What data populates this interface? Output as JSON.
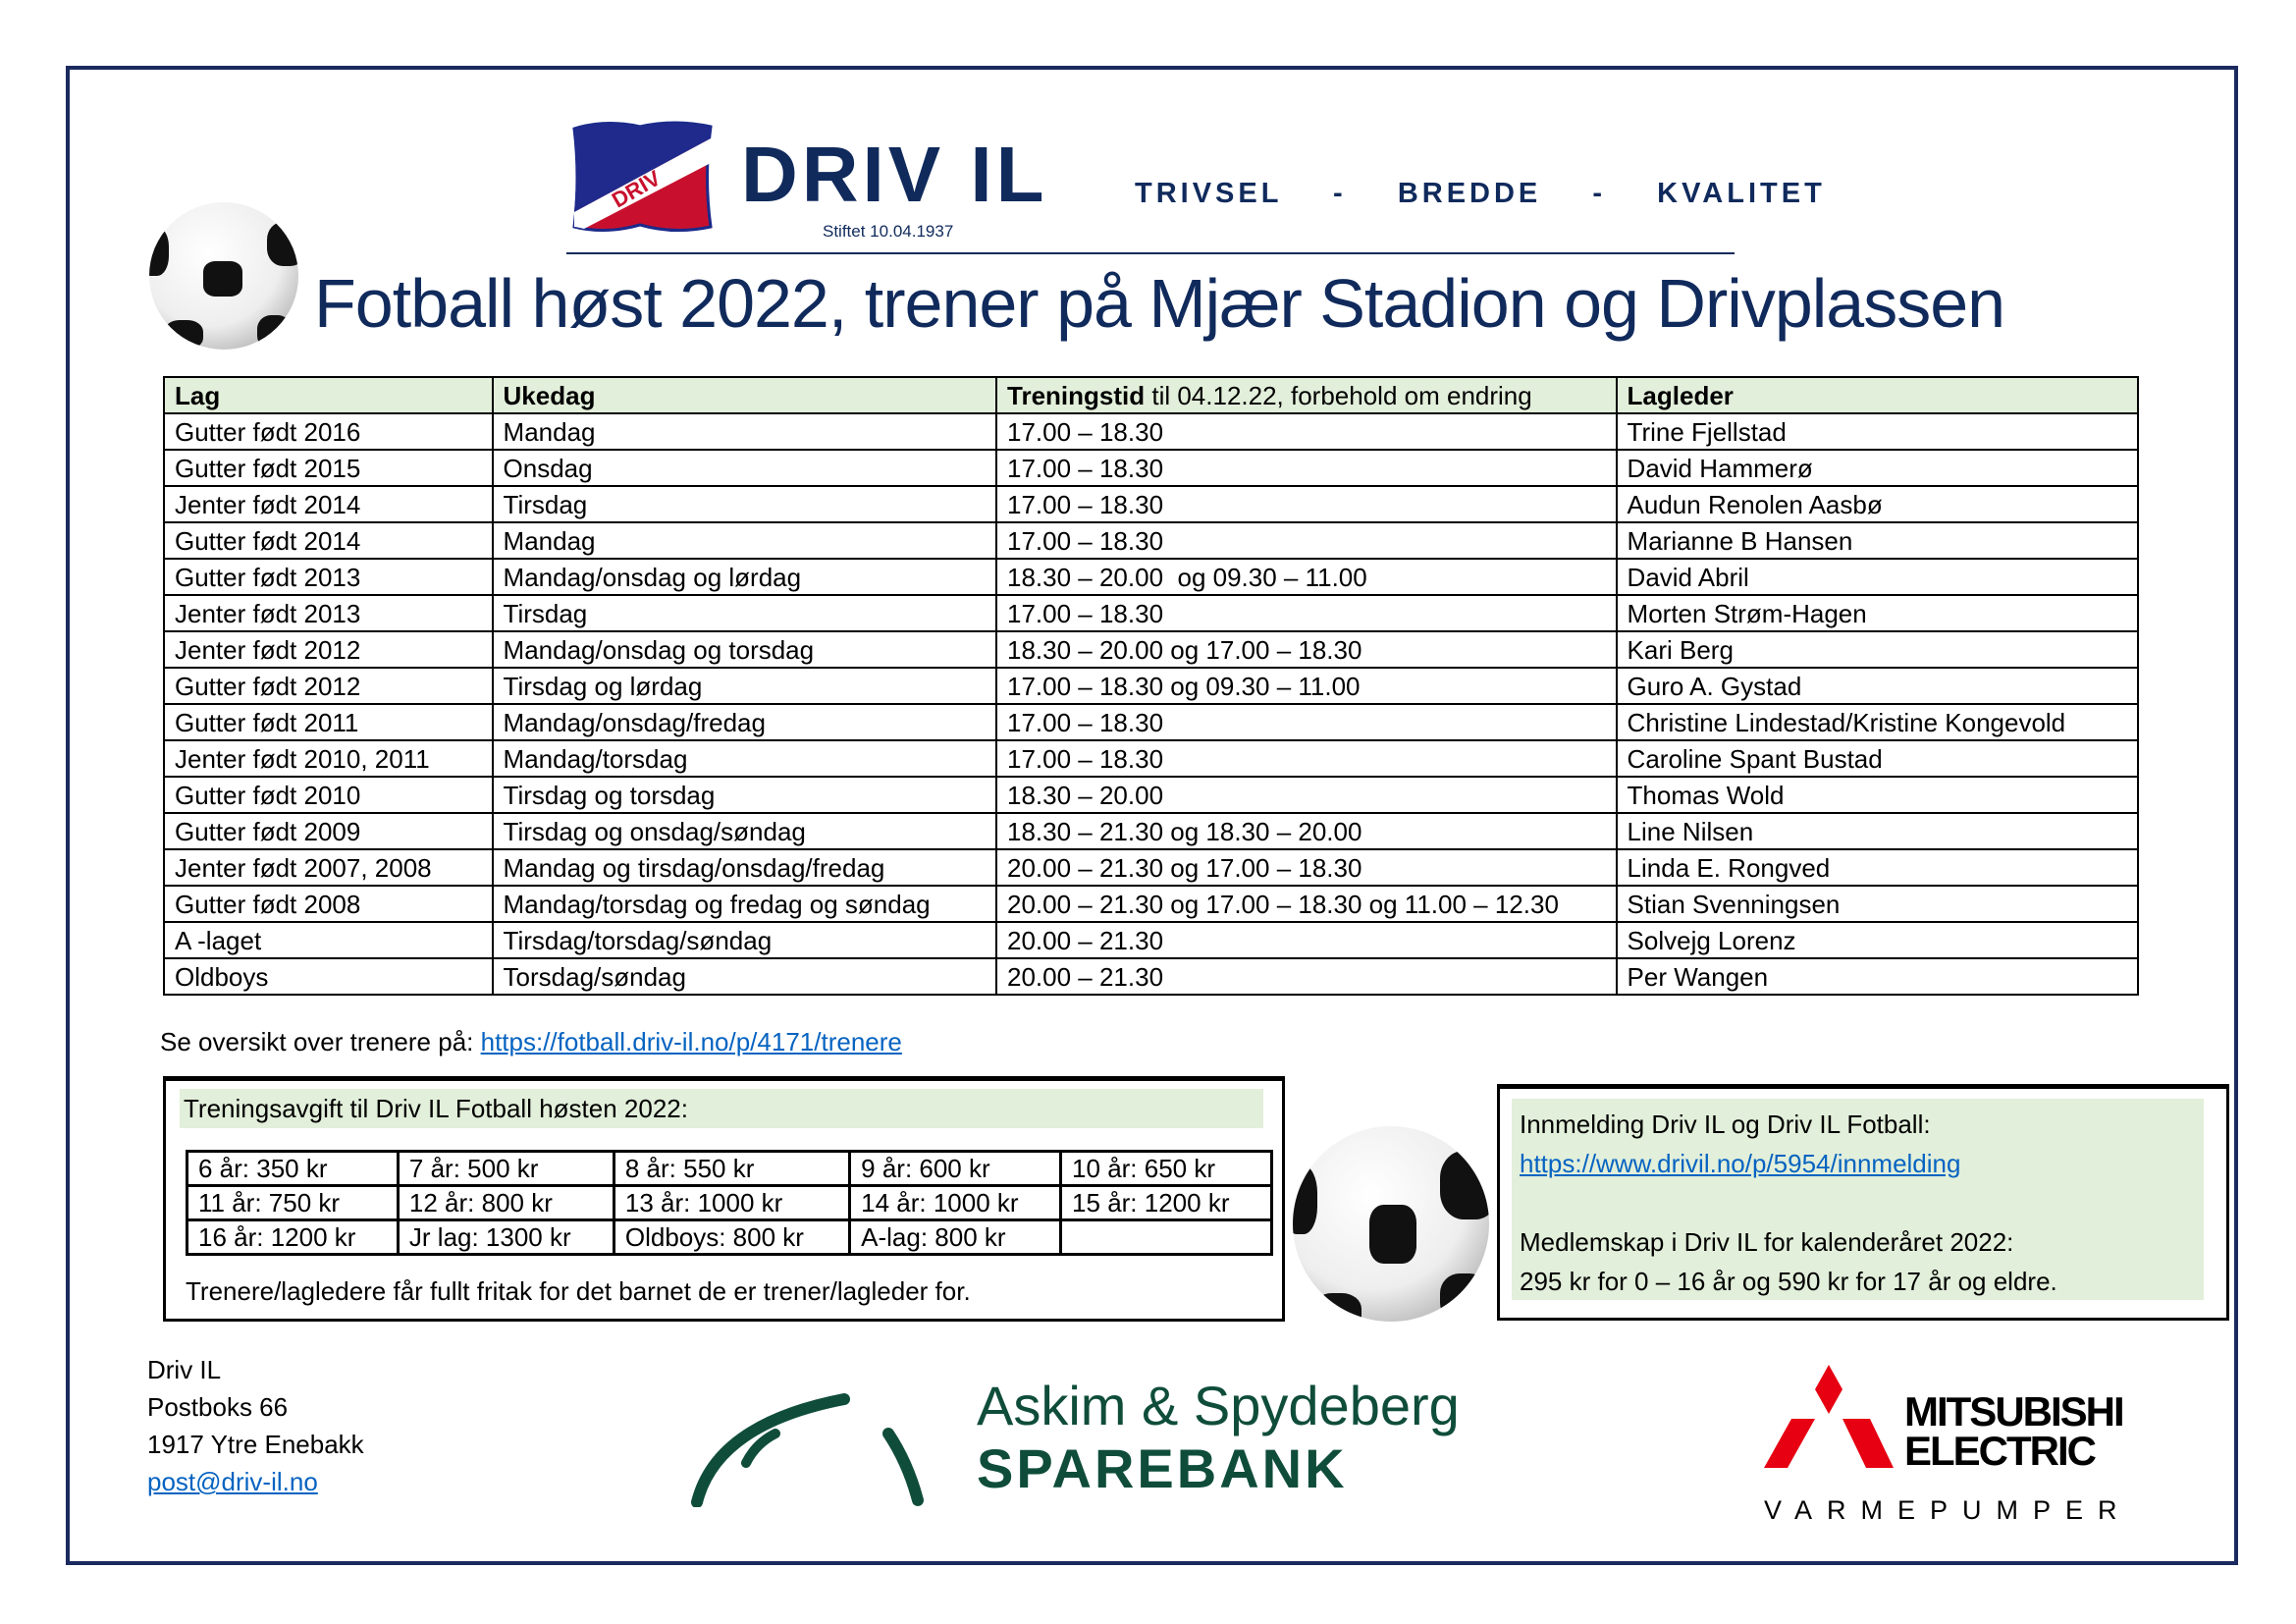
{
  "header": {
    "logo_text": "DRIV",
    "club_name": "DRIV IL",
    "founded": "Stiftet 10.04.1937",
    "tagline": "TRIVSEL  -  BREDDE  -  KVALITET",
    "brand_color": "#102a5c",
    "title": "Fotball høst 2022, trener på Mjær Stadion og Drivplassen"
  },
  "schedule": {
    "columns": [
      "Lag",
      "Ukedag",
      "Treningstid",
      " til 04.12.22, forbehold om endring",
      "Lagleder"
    ],
    "rows": [
      [
        "Gutter født 2016",
        "Mandag",
        "17.00 – 18.30",
        "Trine Fjellstad"
      ],
      [
        "Gutter født 2015",
        "Onsdag",
        "17.00 – 18.30",
        "David Hammerø"
      ],
      [
        "Jenter født 2014",
        "Tirsdag",
        "17.00 – 18.30",
        "Audun Renolen Aasbø"
      ],
      [
        "Gutter født 2014",
        "Mandag",
        "17.00 – 18.30",
        "Marianne B Hansen"
      ],
      [
        "Gutter født 2013",
        "Mandag/onsdag og lørdag",
        "18.30 – 20.00  og 09.30 – 11.00",
        "David Abril"
      ],
      [
        "Jenter født 2013",
        "Tirsdag",
        "17.00 – 18.30",
        "Morten Strøm-Hagen"
      ],
      [
        "Jenter født 2012",
        "Mandag/onsdag og torsdag",
        "18.30 – 20.00 og 17.00 – 18.30",
        "Kari Berg"
      ],
      [
        "Gutter født 2012",
        "Tirsdag og lørdag",
        "17.00 – 18.30 og 09.30 – 11.00",
        "Guro A. Gystad"
      ],
      [
        "Gutter født 2011",
        "Mandag/onsdag/fredag",
        "17.00 – 18.30",
        "Christine Lindestad/Kristine Kongevold"
      ],
      [
        "Jenter født 2010, 2011",
        "Mandag/torsdag",
        "17.00 – 18.30",
        "Caroline Spant Bustad"
      ],
      [
        "Gutter født 2010",
        "Tirsdag og torsdag",
        "18.30 – 20.00",
        "Thomas Wold"
      ],
      [
        "Gutter født 2009",
        "Tirsdag og onsdag/søndag",
        "18.30 – 21.30 og 18.30 – 20.00",
        "Line Nilsen"
      ],
      [
        "Jenter født 2007, 2008",
        "Mandag og tirsdag/onsdag/fredag",
        "20.00 – 21.30 og 17.00 – 18.30",
        "Linda E. Rongved"
      ],
      [
        "Gutter født 2008",
        "Mandag/torsdag og fredag og søndag",
        "20.00 – 21.30 og 17.00 – 18.30 og 11.00 – 12.30",
        "Stian Svenningsen"
      ],
      [
        "A -laget",
        "Tirsdag/torsdag/søndag",
        "20.00 – 21.30",
        "Solvejg Lorenz"
      ],
      [
        "Oldboys",
        "Torsdag/søndag",
        "20.00 – 21.30",
        "Per Wangen"
      ]
    ],
    "header_bg": "#e2efda"
  },
  "trainers_link": {
    "label": "Se oversikt over trenere på: ",
    "url": "https://fotball.driv-il.no/p/4171/trenere"
  },
  "fees": {
    "heading": "Treningsavgift til Driv IL Fotball høsten 2022:",
    "rows": [
      [
        "6 år: 350 kr",
        "7 år: 500 kr",
        "8 år: 550 kr",
        "9 år: 600 kr",
        "10 år: 650 kr"
      ],
      [
        "11 år: 750 kr",
        "12 år: 800 kr",
        "13 år: 1000 kr",
        "14 år: 1000 kr",
        "15 år: 1200 kr"
      ],
      [
        "16 år: 1200 kr",
        "Jr lag: 1300 kr",
        "Oldboys: 800 kr",
        "A-lag: 800 kr",
        ""
      ]
    ],
    "note": "Trenere/lagledere får fullt fritak for det barnet de er trener/lagleder for."
  },
  "membership": {
    "signup_label": "Innmelding Driv IL og Driv IL Fotball:",
    "signup_url": "https://www.drivil.no/p/5954/innmelding",
    "membership_label": "Medlemskap i Driv IL for kalenderåret 2022:",
    "membership_price": "295 kr for 0 – 16 år og 590 kr for 17 år og eldre."
  },
  "footer": {
    "address": [
      "Driv IL",
      "Postboks 66",
      "1917 Ytre Enebakk"
    ],
    "email": "post@driv-il.no",
    "sponsor1": [
      "Askim & Spydeberg",
      "SPAREBANK"
    ],
    "sponsor2": [
      "MITSUBISHI",
      "ELECTRIC",
      "VARMEPUMPER"
    ]
  }
}
